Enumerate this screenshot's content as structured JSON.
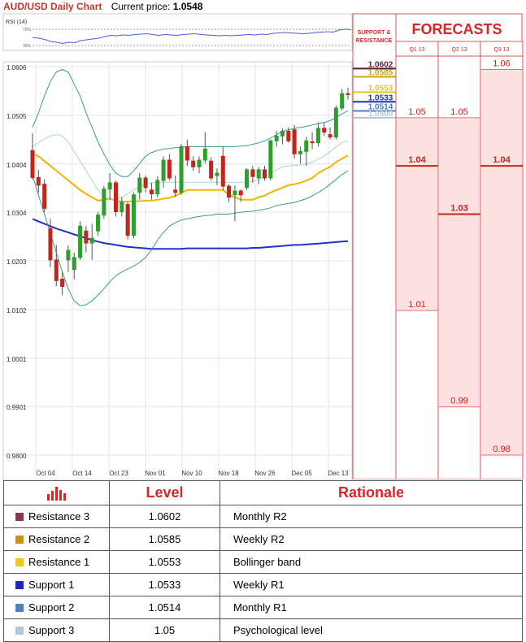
{
  "header": {
    "title": "AUD/USD Daily Chart",
    "current_price_label": "Current price:",
    "current_price": "1.0548"
  },
  "panel": {
    "support_resistance_label": "SUPPORT & RESISTANCE",
    "forecasts_title": "FORECASTS"
  },
  "rsi": {
    "label": "RSI (14)",
    "levels": [
      "70%",
      "30%"
    ]
  },
  "chart_data": {
    "type": "candlestick",
    "title": "AUD/USD Daily Chart",
    "y_range": [
      0.98,
      1.0606
    ],
    "y_ticks": [
      "1.0606",
      "1.0505",
      "1.0404",
      "1.0304",
      "1.0203",
      "1.0102",
      "1.0001",
      "0.9901",
      "0.9800"
    ],
    "x_ticks": [
      "Oct 04",
      "Oct 14",
      "Oct 23",
      "Nov 01",
      "Nov 10",
      "Nov 18",
      "Nov 26",
      "Dec 05",
      "Dec 13"
    ],
    "grid": true,
    "candles": [
      {
        "o": 1.0432,
        "h": 1.0468,
        "l": 1.0372,
        "c": 1.0376
      },
      {
        "o": 1.0376,
        "h": 1.0392,
        "l": 1.0344,
        "c": 1.036
      },
      {
        "o": 1.0362,
        "h": 1.0372,
        "l": 1.0304,
        "c": 1.0312
      },
      {
        "o": 1.027,
        "h": 1.029,
        "l": 1.019,
        "c": 1.0205
      },
      {
        "o": 1.0205,
        "h": 1.0236,
        "l": 1.015,
        "c": 1.0162
      },
      {
        "o": 1.0165,
        "h": 1.018,
        "l": 1.0132,
        "c": 1.015
      },
      {
        "o": 1.0205,
        "h": 1.0235,
        "l": 1.018,
        "c": 1.0225
      },
      {
        "o": 1.0185,
        "h": 1.022,
        "l": 1.0165,
        "c": 1.021
      },
      {
        "o": 1.021,
        "h": 1.0285,
        "l": 1.0205,
        "c": 1.0275
      },
      {
        "o": 1.0265,
        "h": 1.0275,
        "l": 1.022,
        "c": 1.024
      },
      {
        "o": 1.024,
        "h": 1.028,
        "l": 1.0205,
        "c": 1.025
      },
      {
        "o": 1.0265,
        "h": 1.0305,
        "l": 1.0255,
        "c": 1.0298
      },
      {
        "o": 1.0298,
        "h": 1.0358,
        "l": 1.029,
        "c": 1.0352
      },
      {
        "o": 1.0352,
        "h": 1.0385,
        "l": 1.033,
        "c": 1.0365
      },
      {
        "o": 1.0365,
        "h": 1.037,
        "l": 1.0295,
        "c": 1.0305
      },
      {
        "o": 1.0305,
        "h": 1.0335,
        "l": 1.0295,
        "c": 1.0325
      },
      {
        "o": 1.032,
        "h": 1.0325,
        "l": 1.0248,
        "c": 1.0256
      },
      {
        "o": 1.0256,
        "h": 1.0345,
        "l": 1.025,
        "c": 1.034
      },
      {
        "o": 1.0345,
        "h": 1.0385,
        "l": 1.033,
        "c": 1.0375
      },
      {
        "o": 1.0375,
        "h": 1.038,
        "l": 1.0345,
        "c": 1.0355
      },
      {
        "o": 1.035,
        "h": 1.0365,
        "l": 1.033,
        "c": 1.0342
      },
      {
        "o": 1.0342,
        "h": 1.0378,
        "l": 1.0335,
        "c": 1.037
      },
      {
        "o": 1.037,
        "h": 1.042,
        "l": 1.0355,
        "c": 1.0412
      },
      {
        "o": 1.0412,
        "h": 1.0425,
        "l": 1.037,
        "c": 1.0375
      },
      {
        "o": 1.035,
        "h": 1.038,
        "l": 1.0335,
        "c": 1.0345
      },
      {
        "o": 1.0345,
        "h": 1.0445,
        "l": 1.034,
        "c": 1.044
      },
      {
        "o": 1.044,
        "h": 1.0455,
        "l": 1.04,
        "c": 1.0412
      },
      {
        "o": 1.041,
        "h": 1.042,
        "l": 1.039,
        "c": 1.0398
      },
      {
        "o": 1.0398,
        "h": 1.042,
        "l": 1.0385,
        "c": 1.0412
      },
      {
        "o": 1.0412,
        "h": 1.047,
        "l": 1.0405,
        "c": 1.0435
      },
      {
        "o": 1.041,
        "h": 1.0418,
        "l": 1.037,
        "c": 1.0375
      },
      {
        "o": 1.038,
        "h": 1.0395,
        "l": 1.036,
        "c": 1.0385
      },
      {
        "o": 1.042,
        "h": 1.044,
        "l": 1.035,
        "c": 1.0358
      },
      {
        "o": 1.0358,
        "h": 1.0362,
        "l": 1.0325,
        "c": 1.0335
      },
      {
        "o": 1.034,
        "h": 1.036,
        "l": 1.0285,
        "c": 1.0348
      },
      {
        "o": 1.0348,
        "h": 1.0352,
        "l": 1.0325,
        "c": 1.034
      },
      {
        "o": 1.0355,
        "h": 1.0395,
        "l": 1.035,
        "c": 1.0392
      },
      {
        "o": 1.0392,
        "h": 1.04,
        "l": 1.0365,
        "c": 1.0378
      },
      {
        "o": 1.0375,
        "h": 1.0398,
        "l": 1.0362,
        "c": 1.0392
      },
      {
        "o": 1.0392,
        "h": 1.04,
        "l": 1.037,
        "c": 1.0375
      },
      {
        "o": 1.0375,
        "h": 1.0455,
        "l": 1.037,
        "c": 1.0452
      },
      {
        "o": 1.0452,
        "h": 1.0472,
        "l": 1.044,
        "c": 1.0462
      },
      {
        "o": 1.0462,
        "h": 1.0478,
        "l": 1.0445,
        "c": 1.0472
      },
      {
        "o": 1.0472,
        "h": 1.048,
        "l": 1.0448,
        "c": 1.0452
      },
      {
        "o": 1.0475,
        "h": 1.0485,
        "l": 1.0415,
        "c": 1.0425
      },
      {
        "o": 1.0425,
        "h": 1.044,
        "l": 1.0405,
        "c": 1.043
      },
      {
        "o": 1.043,
        "h": 1.046,
        "l": 1.04,
        "c": 1.0452
      },
      {
        "o": 1.045,
        "h": 1.047,
        "l": 1.0435,
        "c": 1.0448
      },
      {
        "o": 1.0448,
        "h": 1.049,
        "l": 1.044,
        "c": 1.0478
      },
      {
        "o": 1.0478,
        "h": 1.049,
        "l": 1.0462,
        "c": 1.047
      },
      {
        "o": 1.0465,
        "h": 1.048,
        "l": 1.0455,
        "c": 1.046
      },
      {
        "o": 1.046,
        "h": 1.0525,
        "l": 1.0455,
        "c": 1.052
      },
      {
        "o": 1.052,
        "h": 1.056,
        "l": 1.0515,
        "c": 1.055
      },
      {
        "o": 1.055,
        "h": 1.0562,
        "l": 1.0538,
        "c": 1.0548
      }
    ],
    "series": [
      {
        "name": "",
        "color": "#f5b400",
        "values": [
          1.0425,
          1.042,
          1.041,
          1.04,
          1.039,
          1.038,
          1.037,
          1.036,
          1.035,
          1.0342,
          1.0335,
          1.0328,
          1.033,
          1.0332,
          1.0328,
          1.0326,
          1.0326,
          1.0327,
          1.0327,
          1.0328,
          1.0328,
          1.033,
          1.0332,
          1.0334,
          1.0338,
          1.0344,
          1.035,
          1.035,
          1.035,
          1.035,
          1.035,
          1.035,
          1.035,
          1.034,
          1.0335,
          1.033,
          1.033,
          1.033,
          1.0335,
          1.0338,
          1.0345,
          1.035,
          1.0355,
          1.036,
          1.0362,
          1.0365,
          1.037,
          1.0375,
          1.0385,
          1.0392,
          1.0398,
          1.0408,
          1.0415,
          1.0422
        ]
      },
      {
        "name": "",
        "color": "#2230c8",
        "values": [
          1.029,
          1.0285,
          1.028,
          1.0275,
          1.027,
          1.0266,
          1.0262,
          1.0258,
          1.0254,
          1.025,
          1.0246,
          1.0243,
          1.024,
          1.0238,
          1.0236,
          1.0234,
          1.0232,
          1.0231,
          1.023,
          1.0229,
          1.0228,
          1.0228,
          1.0228,
          1.0228,
          1.0228,
          1.0228,
          1.0229,
          1.0229,
          1.0229,
          1.0229,
          1.0229,
          1.0229,
          1.0229,
          1.0229,
          1.0229,
          1.0229,
          1.0229,
          1.023,
          1.023,
          1.0231,
          1.0232,
          1.0233,
          1.0234,
          1.0235,
          1.0236,
          1.0236,
          1.0237,
          1.0238,
          1.0239,
          1.024,
          1.0241,
          1.0242,
          1.0243,
          1.0244
        ]
      },
      {
        "name": "",
        "color": "#3a9a9a",
        "values": [
          1.048,
          1.051,
          1.0545,
          1.0575,
          1.0595,
          1.06,
          1.0595,
          1.057,
          1.0545,
          1.051,
          1.048,
          1.045,
          1.0425,
          1.0402,
          1.0385,
          1.0378,
          1.0378,
          1.039,
          1.0405,
          1.042,
          1.0428,
          1.0432,
          1.0435,
          1.0436,
          1.0438,
          1.0438,
          1.044,
          1.044,
          1.044,
          1.044,
          1.044,
          1.044,
          1.044,
          1.044,
          1.044,
          1.0441,
          1.0442,
          1.0445,
          1.0448,
          1.0452,
          1.0458,
          1.0465,
          1.0472,
          1.0475,
          1.0478,
          1.048,
          1.0482,
          1.0485,
          1.0488,
          1.049,
          1.0494,
          1.05,
          1.0508,
          1.0515
        ]
      },
      {
        "name": "",
        "color": "#3a9a9a",
        "values": [
          1.038,
          1.034,
          1.03,
          1.026,
          1.022,
          1.018,
          1.0145,
          1.012,
          1.011,
          1.0112,
          1.012,
          1.0132,
          1.0145,
          1.016,
          1.0172,
          1.018,
          1.0186,
          1.0192,
          1.02,
          1.021,
          1.0226,
          1.0246,
          1.0262,
          1.0275,
          1.0282,
          1.0288,
          1.029,
          1.0293,
          1.0295,
          1.0297,
          1.0298,
          1.03,
          1.03,
          1.03,
          1.0302,
          1.0304,
          1.0305,
          1.0306,
          1.0308,
          1.031,
          1.0313,
          1.0318,
          1.032,
          1.0322,
          1.0324,
          1.0328,
          1.0332,
          1.0338,
          1.0345,
          1.0352,
          1.0362,
          1.0372,
          1.0382,
          1.039
        ]
      },
      {
        "name": "",
        "color": "#a6d8cf",
        "values": [
          1.044,
          1.0448,
          1.0456,
          1.0462,
          1.0465,
          1.0462,
          1.045,
          1.043,
          1.041,
          1.039,
          1.037,
          1.035,
          1.0338,
          1.033,
          1.033,
          1.0335,
          1.0342,
          1.035,
          1.0358,
          1.0362,
          1.0365,
          1.0366,
          1.0366,
          1.0366,
          1.0366,
          1.0366,
          1.0366,
          1.0366,
          1.0366,
          1.0366,
          1.0366,
          1.0366,
          1.0366,
          1.0366,
          1.0366,
          1.0366,
          1.0366,
          1.0368,
          1.0372,
          1.0378,
          1.0385,
          1.0392,
          1.0398,
          1.04,
          1.0401,
          1.0402,
          1.0404,
          1.0408,
          1.0414,
          1.042,
          1.043,
          1.044,
          1.0448,
          1.0452
        ]
      }
    ],
    "rsi_values": [
      50,
      48,
      45,
      40,
      38,
      35,
      38,
      37,
      42,
      44,
      46,
      48,
      52,
      55,
      54,
      56,
      55,
      57,
      58,
      59,
      57,
      55,
      57,
      56,
      55,
      57,
      58,
      59,
      57,
      56,
      55,
      54,
      55,
      54,
      55,
      56,
      57,
      56,
      58,
      57,
      60,
      61,
      62,
      61,
      60,
      59,
      60,
      62,
      63,
      64,
      63,
      68,
      70,
      69
    ],
    "levels": [
      {
        "label": "1.0602",
        "value": 1.0602,
        "color": "#5a1f2e"
      },
      {
        "label": "1.0585",
        "value": 1.0585,
        "color": "#d4a017"
      },
      {
        "label": "1.0553",
        "value": 1.0553,
        "color": "#f0c419"
      },
      {
        "label": "1.0533",
        "value": 1.0533,
        "color": "#1f2fc4"
      },
      {
        "label": "1.0514",
        "value": 1.0514,
        "color": "#4a7fc1"
      },
      {
        "label": "1.0500",
        "value": 1.05,
        "color": "#b0c8d8"
      }
    ]
  },
  "forecasts": {
    "columns": [
      {
        "label": "Q1 13",
        "markers": [
          {
            "label": "1.05",
            "value": 1.05,
            "bold": false
          },
          {
            "label": "1.04",
            "value": 1.04,
            "bold": true
          },
          {
            "label": "1.01",
            "value": 1.01,
            "bold": false
          }
        ]
      },
      {
        "label": "Q2 13",
        "markers": [
          {
            "label": "1.05",
            "value": 1.05,
            "bold": false
          },
          {
            "label": "1.03",
            "value": 1.03,
            "bold": true
          },
          {
            "label": "0.99",
            "value": 0.99,
            "bold": false
          }
        ]
      },
      {
        "label": "Q3 13",
        "markers": [
          {
            "label": "1.06",
            "value": 1.06,
            "bold": false
          },
          {
            "label": "1.04",
            "value": 1.04,
            "bold": true
          },
          {
            "label": "0.98",
            "value": 0.98,
            "bold": false
          }
        ]
      }
    ]
  },
  "table": {
    "headers": {
      "level": "Level",
      "rationale": "Rationale"
    },
    "rows": [
      {
        "name": "Resistance 3",
        "value": "1.0602",
        "rationale": "Monthly R2",
        "color": "#8b3a4a"
      },
      {
        "name": "Resistance 2",
        "value": "1.0585",
        "rationale": "Weekly R2",
        "color": "#c8960c"
      },
      {
        "name": "Resistance 1",
        "value": "1.0553",
        "rationale": "Bollinger band",
        "color": "#f5c518"
      },
      {
        "name": "Support 1",
        "value": "1.0533",
        "rationale": "Weekly R1",
        "color": "#1e22c8"
      },
      {
        "name": "Support 2",
        "value": "1.0514",
        "rationale": "Monthly R1",
        "color": "#4a7fc1"
      },
      {
        "name": "Support 3",
        "value": "1.05",
        "rationale": "Psychological level",
        "color": "#b0c8d8"
      }
    ]
  }
}
